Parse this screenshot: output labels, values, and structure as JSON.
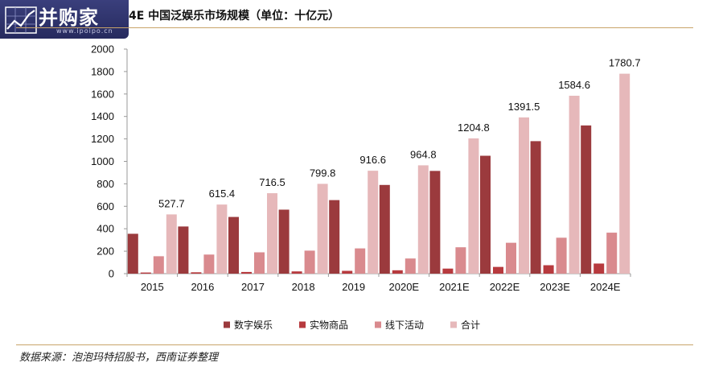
{
  "header": {
    "logo_text": "并购家",
    "logo_url": "www.ipoipo.cn",
    "title": "4E 中国泛娱乐市场规模（单位：十亿元）"
  },
  "footer": {
    "source": "数据来源：泡泡玛特招股书，西南证券整理"
  },
  "chart_data": {
    "type": "bar",
    "categories": [
      "2015",
      "2016",
      "2017",
      "2018",
      "2019",
      "2020E",
      "2021E",
      "2022E",
      "2023E",
      "2024E"
    ],
    "series": [
      {
        "name": "数字娱乐",
        "color": "#9b3a3d",
        "values": [
          355,
          420,
          505,
          570,
          655,
          790,
          915,
          1050,
          1180,
          1320
        ]
      },
      {
        "name": "实物商品",
        "color": "#b73a3e",
        "values": [
          10,
          12,
          15,
          20,
          25,
          30,
          45,
          60,
          75,
          90
        ]
      },
      {
        "name": "线下活动",
        "color": "#d98a8e",
        "values": [
          155,
          170,
          190,
          205,
          225,
          135,
          235,
          275,
          320,
          365
        ]
      },
      {
        "name": "合计",
        "color": "#e6b8ba",
        "values": [
          527.7,
          615.4,
          716.5,
          799.8,
          916.6,
          964.8,
          1204.8,
          1391.5,
          1584.6,
          1780.7
        ]
      }
    ],
    "data_labels": [
      "527.7",
      "615.4",
      "716.5",
      "799.8",
      "916.6",
      "964.8",
      "1204.8",
      "1391.5",
      "1584.6",
      "1780.7"
    ],
    "y_ticks": [
      "0",
      "200",
      "400",
      "600",
      "800",
      "1000",
      "1200",
      "1400",
      "1600",
      "1800",
      "2000"
    ],
    "ylim": [
      0,
      2000
    ],
    "grid": false,
    "legend_position": "bottom"
  }
}
